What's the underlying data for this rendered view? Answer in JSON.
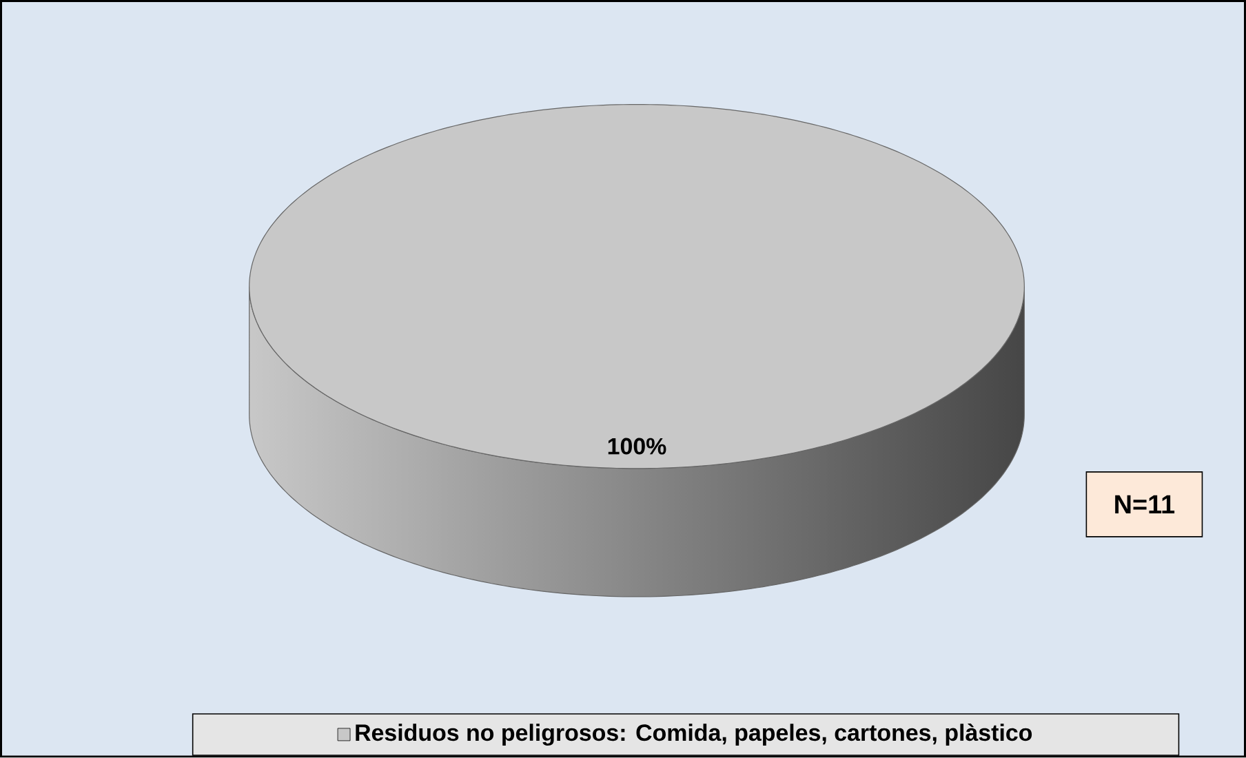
{
  "chart_data": {
    "type": "pie",
    "categories": [
      "Residuos no peligrosos: Comida, papeles, cartones, plàstico"
    ],
    "values": [
      100
    ],
    "colors": [
      "#c8c8c8"
    ],
    "value_labels": [
      "100%"
    ],
    "legend": "bottom",
    "annotations": [
      "N=11"
    ]
  }
}
